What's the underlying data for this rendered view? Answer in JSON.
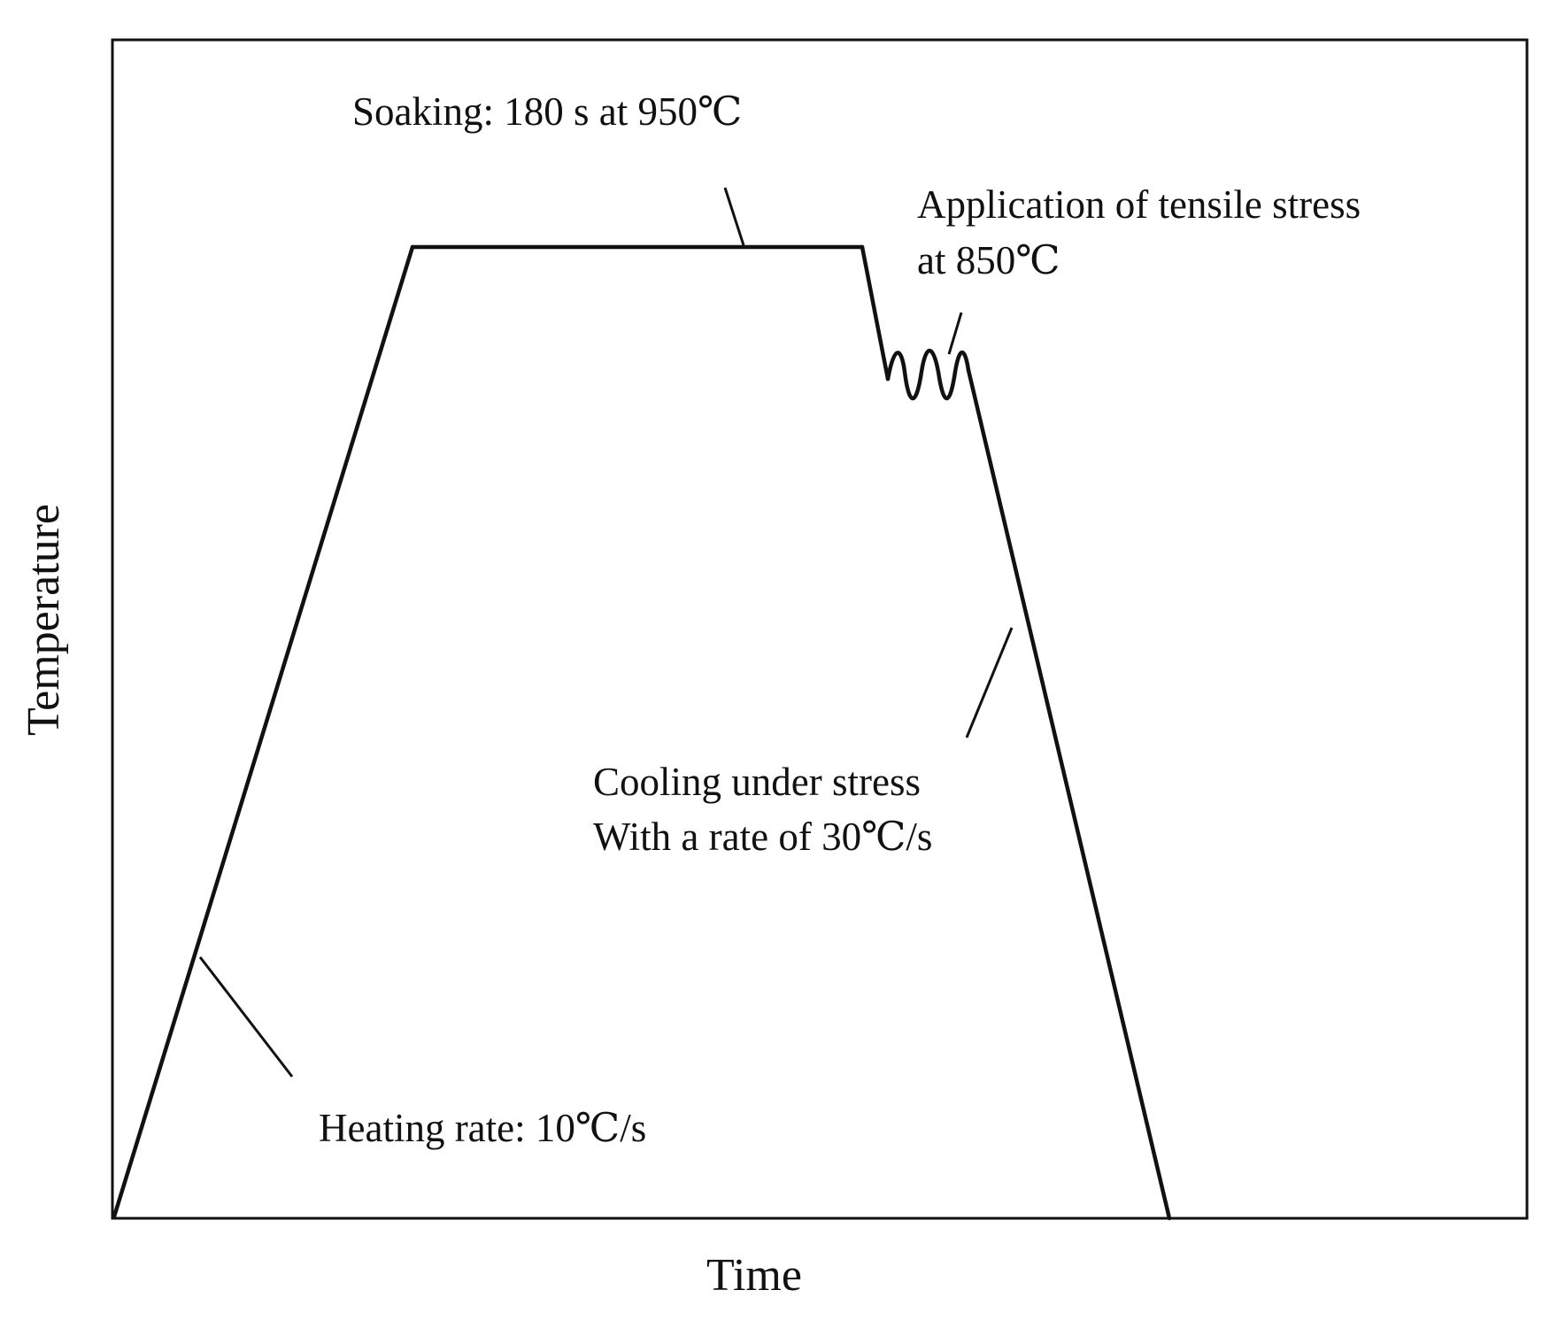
{
  "axes": {
    "x_label": "Time",
    "y_label": "Temperature"
  },
  "annotations": {
    "soaking": "Soaking:  180 s at 950℃",
    "tensile_line1": "Application of tensile stress",
    "tensile_line2": "at 850℃",
    "cooling_line1": "Cooling under stress",
    "cooling_line2": "With a rate of 30℃/s",
    "heating": "Heating rate: 10℃/s"
  },
  "colors": {
    "line": "#111111",
    "background": "#ffffff"
  }
}
